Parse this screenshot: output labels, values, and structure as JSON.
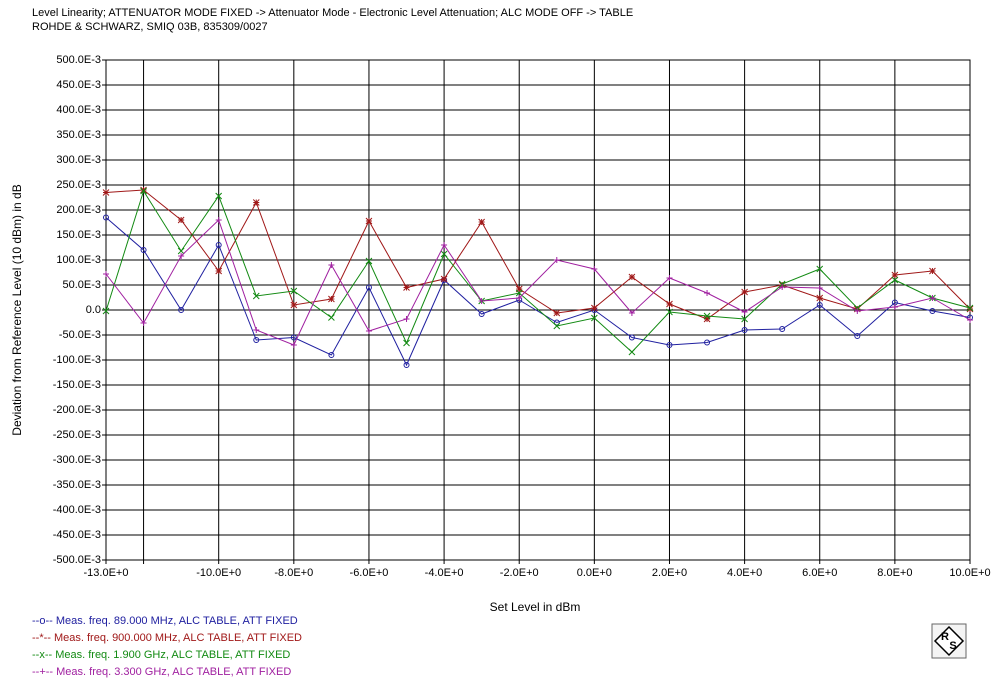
{
  "chart_data": {
    "type": "line",
    "title": [
      "Level Linearity; ATTENUATOR MODE FIXED -> Attenuator Mode - Electronic Level Attenuation; ALC MODE OFF -> TABLE",
      "ROHDE & SCHWARZ, SMIQ 03B, 835309/0027"
    ],
    "xlabel": "Set Level in dBm",
    "ylabel": "Deviation from Reference Level (10 dBm) in dB",
    "logo": [
      "R",
      "S"
    ],
    "grid": true,
    "xlim": [
      -13,
      10
    ],
    "ylim": [
      -0.5,
      0.5
    ],
    "xticks": [
      {
        "value": -13,
        "label": "-13.0E+0"
      },
      {
        "value": -12,
        "label": null
      },
      {
        "value": -10,
        "label": "-10.0E+0"
      },
      {
        "value": -8,
        "label": "-8.0E+0"
      },
      {
        "value": -6,
        "label": "-6.0E+0"
      },
      {
        "value": -4,
        "label": "-4.0E+0"
      },
      {
        "value": -2,
        "label": "-2.0E+0"
      },
      {
        "value": 0,
        "label": "0.0E+0"
      },
      {
        "value": 2,
        "label": "2.0E+0"
      },
      {
        "value": 4,
        "label": "4.0E+0"
      },
      {
        "value": 6,
        "label": "6.0E+0"
      },
      {
        "value": 8,
        "label": "8.0E+0"
      },
      {
        "value": 10,
        "label": "10.0E+0"
      }
    ],
    "yticks": [
      {
        "value": 0.5,
        "label": "500.0E-3"
      },
      {
        "value": 0.45,
        "label": "450.0E-3"
      },
      {
        "value": 0.4,
        "label": "400.0E-3"
      },
      {
        "value": 0.35,
        "label": "350.0E-3"
      },
      {
        "value": 0.3,
        "label": "300.0E-3"
      },
      {
        "value": 0.25,
        "label": "250.0E-3"
      },
      {
        "value": 0.2,
        "label": "200.0E-3"
      },
      {
        "value": 0.15,
        "label": "150.0E-3"
      },
      {
        "value": 0.1,
        "label": "100.0E-3"
      },
      {
        "value": 0.05,
        "label": "50.0E-3"
      },
      {
        "value": 0,
        "label": "0.0"
      },
      {
        "value": -0.05,
        "label": "-50.0E-3"
      },
      {
        "value": -0.1,
        "label": "-100.0E-3"
      },
      {
        "value": -0.15,
        "label": "-150.0E-3"
      },
      {
        "value": -0.2,
        "label": "-200.0E-3"
      },
      {
        "value": -0.25,
        "label": "-250.0E-3"
      },
      {
        "value": -0.3,
        "label": "-300.0E-3"
      },
      {
        "value": -0.35,
        "label": "-350.0E-3"
      },
      {
        "value": -0.4,
        "label": "-400.0E-3"
      },
      {
        "value": -0.45,
        "label": "-450.0E-3"
      },
      {
        "value": -0.5,
        "label": "-500.0E-3"
      }
    ],
    "x": [
      -13,
      -12,
      -11,
      -10,
      -9,
      -8,
      -7,
      -6,
      -5,
      -4,
      -3,
      -2,
      -1,
      0,
      1,
      2,
      3,
      4,
      5,
      6,
      7,
      8,
      9,
      10
    ],
    "series": [
      {
        "name": "--o-- Meas. freq. 89.000 MHz, ALC TABLE, ATT FIXED",
        "color": "#2020a0",
        "marker": "circle",
        "values": [
          0.185,
          0.12,
          0,
          0.13,
          -0.06,
          -0.055,
          -0.09,
          0.045,
          -0.11,
          0.06,
          -0.008,
          0.02,
          -0.025,
          0,
          -0.055,
          -0.07,
          -0.065,
          -0.04,
          -0.038,
          0.01,
          -0.052,
          0.015,
          -0.002,
          -0.015
        ]
      },
      {
        "name": "--*-- Meas. freq. 900.000 MHz, ALC TABLE, ATT FIXED",
        "color": "#a01818",
        "marker": "star",
        "values": [
          0.235,
          0.24,
          0.18,
          0.078,
          0.215,
          0.01,
          0.022,
          0.178,
          0.045,
          0.062,
          0.176,
          0.042,
          -0.006,
          0.004,
          0.066,
          0.012,
          -0.018,
          0.036,
          0.05,
          0.024,
          0.002,
          0.07,
          0.078,
          0.002
        ]
      },
      {
        "name": "--x-- Meas. freq. 1.900 GHz, ALC TABLE, ATT FIXED",
        "color": "#128a12",
        "marker": "cross",
        "values": [
          -0.002,
          0.238,
          0.118,
          0.228,
          0.028,
          0.038,
          -0.015,
          0.098,
          -0.066,
          0.112,
          0.018,
          0.034,
          -0.032,
          -0.016,
          -0.084,
          -0.004,
          -0.012,
          -0.018,
          0.052,
          0.082,
          0.004,
          0.06,
          0.024,
          0.004
        ]
      },
      {
        "name": "--+-- Meas. freq. 3.300 GHz, ALC TABLE, ATT FIXED",
        "color": "#a020a0",
        "marker": "plus",
        "values": [
          0.072,
          -0.026,
          0.108,
          0.18,
          -0.04,
          -0.07,
          0.09,
          -0.042,
          -0.018,
          0.13,
          0.018,
          0.024,
          0.1,
          0.082,
          -0.006,
          0.064,
          0.034,
          -0.004,
          0.046,
          0.044,
          -0.002,
          0.006,
          0.024,
          -0.02
        ]
      }
    ]
  }
}
